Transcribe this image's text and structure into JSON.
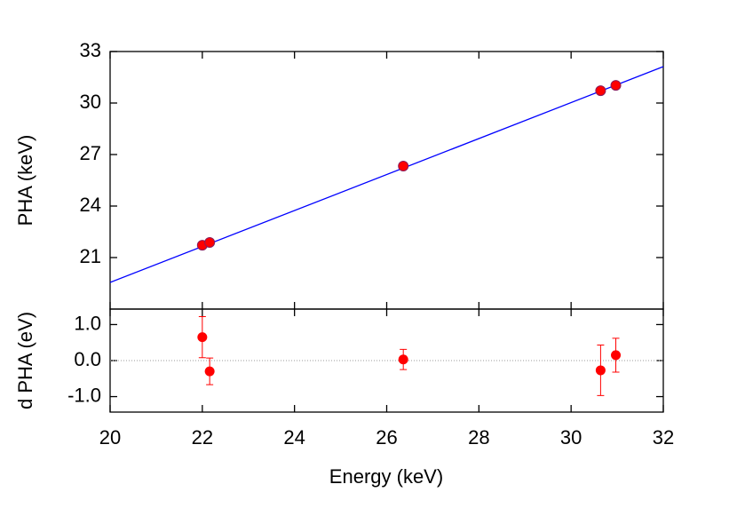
{
  "chart_data": [
    {
      "type": "scatter",
      "ylabel": "PHA (keV)",
      "xlim": [
        20,
        32
      ],
      "ylim": [
        18,
        33
      ],
      "yticks": [
        21,
        24,
        27,
        30,
        33
      ],
      "x": [
        22.0,
        22.16,
        26.36,
        30.64,
        30.97
      ],
      "values": [
        21.72,
        21.88,
        26.33,
        30.72,
        31.03
      ],
      "color": "#ff0000",
      "fit": {
        "x": [
          20,
          32
        ],
        "values": [
          19.55,
          32.12
        ],
        "color": "#0000ff"
      }
    },
    {
      "type": "errorbar",
      "ylabel": "d PHA (eV)",
      "xlabel": "Energy (keV)",
      "xlim": [
        20,
        32
      ],
      "xticks": [
        20,
        22,
        24,
        26,
        28,
        30,
        32
      ],
      "ylim": [
        -1.43,
        1.43
      ],
      "yticks": [
        {
          "value": -1,
          "label": "-1.0"
        },
        {
          "value": 0,
          "label": "0.0"
        },
        {
          "value": 1,
          "label": "1.0"
        }
      ],
      "x": [
        22.0,
        22.16,
        26.36,
        30.64,
        30.97
      ],
      "values": [
        0.65,
        -0.3,
        0.03,
        -0.27,
        0.15
      ],
      "errors": [
        0.57,
        0.37,
        0.28,
        0.7,
        0.47
      ],
      "color": "#ff0000",
      "zero_line": true
    }
  ]
}
